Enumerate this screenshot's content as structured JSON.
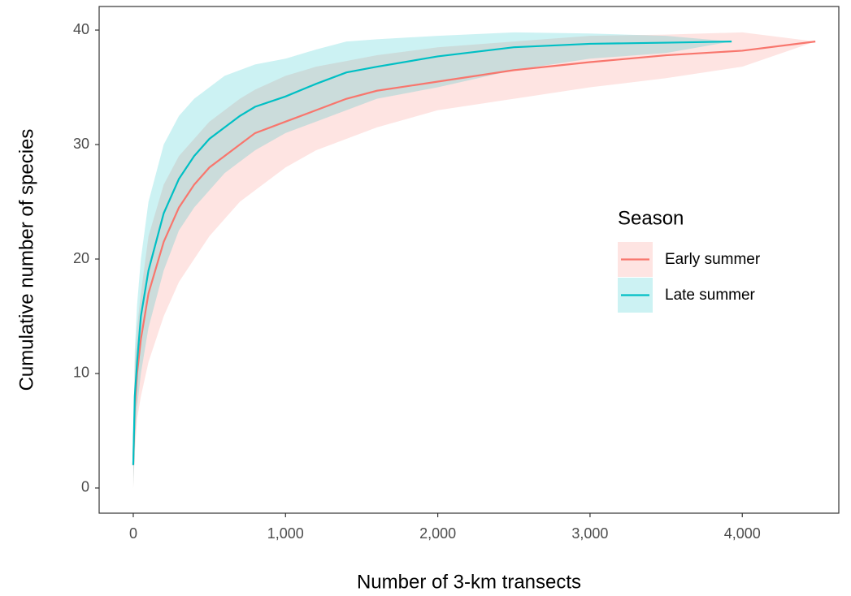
{
  "chart_data": {
    "type": "line-ribbon",
    "x_label": "Number of 3-km transects",
    "y_label": "Cumulative number of species",
    "legend_title": "Season",
    "legend_position": "right",
    "grid": false,
    "xlim": [
      -224,
      4634
    ],
    "ylim": [
      -2.2,
      42.06
    ],
    "xticks": [
      0,
      {
        "value": 1000,
        "label": "1,000"
      },
      {
        "value": 2000,
        "label": "2,000"
      },
      {
        "value": 3000,
        "label": "3,000"
      },
      {
        "value": 4000,
        "label": "4,000"
      }
    ],
    "yticks": [
      0,
      10,
      20,
      30,
      40
    ],
    "series": [
      {
        "name": "Early summer",
        "color": "#F8766D",
        "x": [
          0,
          10,
          25,
          50,
          100,
          200,
          300,
          400,
          500,
          600,
          700,
          800,
          1000,
          1200,
          1400,
          1600,
          2000,
          2500,
          3000,
          3500,
          4000,
          4480
        ],
        "values": [
          2,
          7,
          10,
          13,
          17,
          21.5,
          24.5,
          26.5,
          28,
          29,
          30,
          31,
          32,
          33,
          34,
          34.7,
          35.5,
          36.5,
          37.2,
          37.8,
          38.2,
          39
        ],
        "lower": [
          0,
          3,
          6,
          8,
          11,
          15,
          18,
          20,
          22,
          23.5,
          25,
          26,
          28,
          29.5,
          30.5,
          31.5,
          33,
          34,
          35,
          35.8,
          36.8,
          39
        ],
        "upper": [
          4,
          11,
          14,
          17,
          22,
          26.5,
          29,
          30.5,
          32,
          33,
          34,
          34.8,
          36,
          36.8,
          37.3,
          37.8,
          38.5,
          39,
          39.5,
          39.6,
          39.8,
          39
        ]
      },
      {
        "name": "Late summer",
        "color": "#00BFC4",
        "x": [
          0,
          10,
          25,
          50,
          100,
          200,
          300,
          400,
          500,
          600,
          700,
          800,
          1000,
          1200,
          1400,
          1600,
          2000,
          2500,
          3000,
          3500,
          3930
        ],
        "values": [
          2,
          8,
          11,
          15,
          19,
          24,
          27,
          29,
          30.5,
          31.5,
          32.5,
          33.3,
          34.2,
          35.3,
          36.3,
          36.8,
          37.7,
          38.5,
          38.8,
          38.9,
          39
        ],
        "lower": [
          0,
          4,
          7,
          10,
          14,
          19,
          22.5,
          24.5,
          26,
          27.5,
          28.5,
          29.5,
          31,
          32,
          33,
          34,
          35,
          36.5,
          37.5,
          38,
          39
        ],
        "upper": [
          4,
          12,
          16,
          20,
          25,
          30,
          32.5,
          34,
          35,
          36,
          36.5,
          37,
          37.5,
          38.3,
          39,
          39.2,
          39.5,
          39.8,
          39.7,
          39.5,
          39
        ]
      }
    ]
  }
}
